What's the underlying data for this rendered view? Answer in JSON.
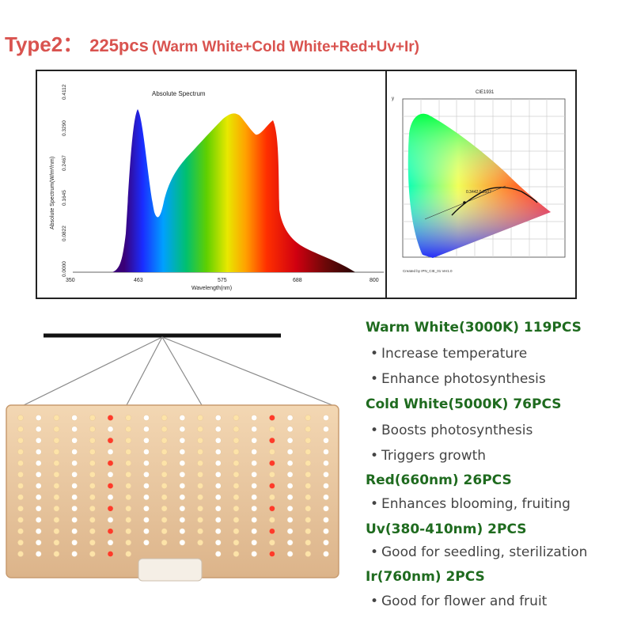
{
  "header": {
    "type_label": "Type2：",
    "count_label": "225pcs",
    "mix_label": "(Warm White+Cold White+Red+Uv+Ir)"
  },
  "spectrum": {
    "title": "Absolute Spectrum",
    "ylabel": "Absolute Spectrum(W/m²/nm)",
    "xlabel": "Wavelength(nm)",
    "x_ticks": [
      "350",
      "463",
      "575",
      "688",
      "800"
    ],
    "y_ticks": [
      "0.0000",
      "0.0822",
      "0.1645",
      "0.2467",
      "0.3290",
      "0.4112"
    ]
  },
  "cie": {
    "title": "CIE1931",
    "axis_label": "y",
    "point_label": "0.3442,0.3507",
    "footer": "Created by IPN_CIE_01 Ver1.0"
  },
  "specs": [
    {
      "kind": "head",
      "text": "Warm White(3000K) 119PCS"
    },
    {
      "kind": "bullet",
      "text": "Increase temperature"
    },
    {
      "kind": "bullet",
      "text": "Enhance photosynthesis"
    },
    {
      "kind": "head",
      "text": "Cold White(5000K) 76PCS"
    },
    {
      "kind": "bullet",
      "text": "Boosts photosynthesis"
    },
    {
      "kind": "bullet",
      "text": "Triggers growth"
    },
    {
      "kind": "head",
      "text": "Red(660nm) 26PCS"
    },
    {
      "kind": "bullet",
      "text": "Enhances blooming, fruiting"
    },
    {
      "kind": "head",
      "text": "Uv(380-410nm) 2PCS"
    },
    {
      "kind": "bullet",
      "text": "Good for seedling, sterilization"
    },
    {
      "kind": "head",
      "text": "Ir(760nm) 2PCS"
    },
    {
      "kind": "bullet",
      "text": "Good for flower and fruit"
    }
  ],
  "bullet_glyph": "•",
  "colors": {
    "headline": "#d9534f",
    "spec_head": "#1f6b1f",
    "spec_bullet": "#444444",
    "board": "#e9c9a4",
    "warm_led": "#fde3a8",
    "cold_led": "#ffffff",
    "red_led": "#ff3a2a"
  }
}
